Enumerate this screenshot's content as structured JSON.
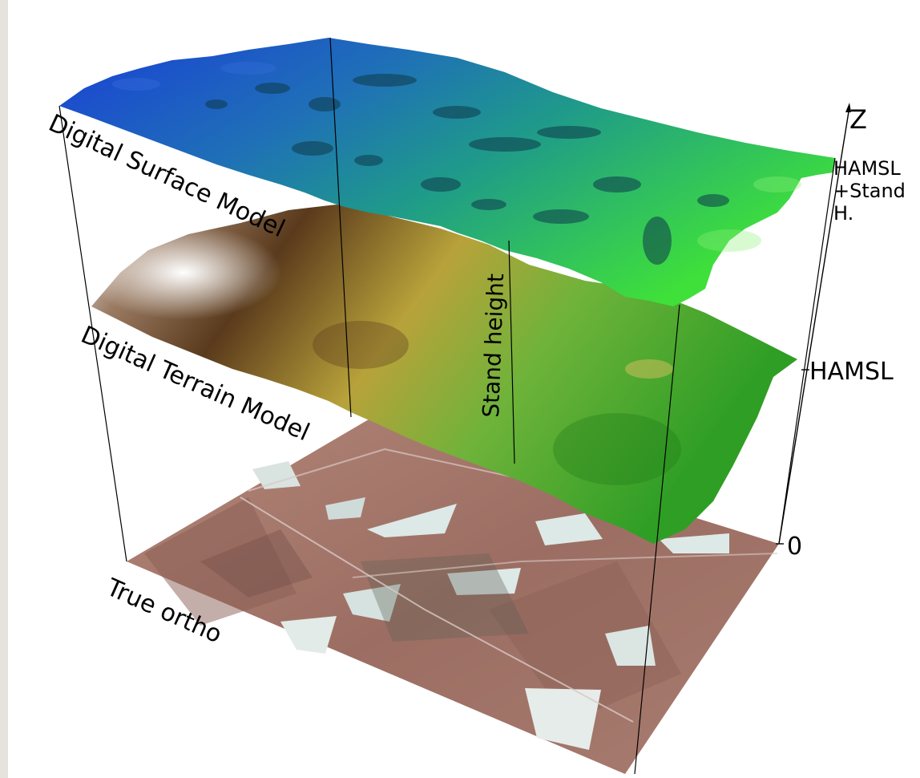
{
  "layers": {
    "dsm": "Digital Surface Model",
    "dtm": "Digital Terrain Model",
    "ortho": "True ortho"
  },
  "measure": "Stand height",
  "axis": {
    "name": "Z",
    "top_line1": "HAMSL",
    "top_line2": "+Stand",
    "top_line3": "H.",
    "mid": "HAMSL",
    "zero": "0"
  },
  "colors": {
    "dsm_high": "#1a3fd6",
    "dsm_mid": "#1f8aa0",
    "dsm_low": "#3fe03a",
    "dtm_light": "#f4f1ee",
    "dtm_brown": "#5a3a1c",
    "dtm_olive": "#b8a23a",
    "dtm_green": "#2f9e25",
    "ortho_base": "#a8786e",
    "ortho_clearing": "#dde9e6"
  }
}
